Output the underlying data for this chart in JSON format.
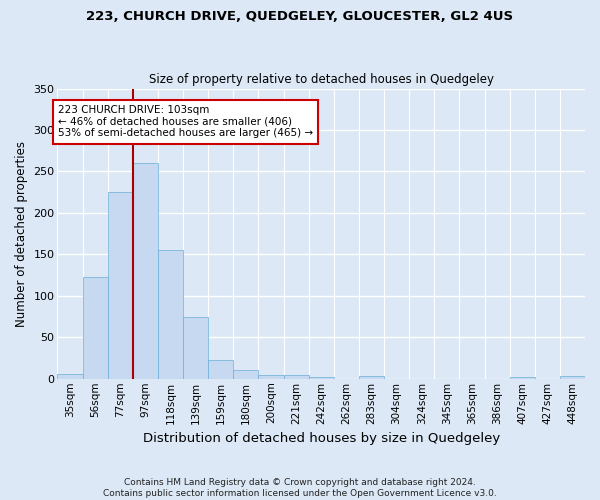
{
  "title1": "223, CHURCH DRIVE, QUEDGELEY, GLOUCESTER, GL2 4US",
  "title2": "Size of property relative to detached houses in Quedgeley",
  "xlabel": "Distribution of detached houses by size in Quedgeley",
  "ylabel": "Number of detached properties",
  "bar_labels": [
    "35sqm",
    "56sqm",
    "77sqm",
    "97sqm",
    "118sqm",
    "139sqm",
    "159sqm",
    "180sqm",
    "200sqm",
    "221sqm",
    "242sqm",
    "262sqm",
    "283sqm",
    "304sqm",
    "324sqm",
    "345sqm",
    "365sqm",
    "386sqm",
    "407sqm",
    "427sqm",
    "448sqm"
  ],
  "bar_values": [
    6,
    123,
    225,
    260,
    155,
    75,
    23,
    10,
    5,
    4,
    2,
    0,
    3,
    0,
    0,
    0,
    0,
    0,
    2,
    0,
    3
  ],
  "bar_color": "#c6d9f0",
  "bar_edgecolor": "#6aaed6",
  "background_color": "#dce8f5",
  "grid_color": "#ffffff",
  "vline_index": 2.5,
  "vline_color": "#aa0000",
  "annotation_text": "223 CHURCH DRIVE: 103sqm\n← 46% of detached houses are smaller (406)\n53% of semi-detached houses are larger (465) →",
  "annotation_box_facecolor": "#ffffff",
  "annotation_box_edgecolor": "#cc0000",
  "ylim": [
    0,
    350
  ],
  "yticks": [
    0,
    50,
    100,
    150,
    200,
    250,
    300,
    350
  ],
  "footer": "Contains HM Land Registry data © Crown copyright and database right 2024.\nContains public sector information licensed under the Open Government Licence v3.0."
}
